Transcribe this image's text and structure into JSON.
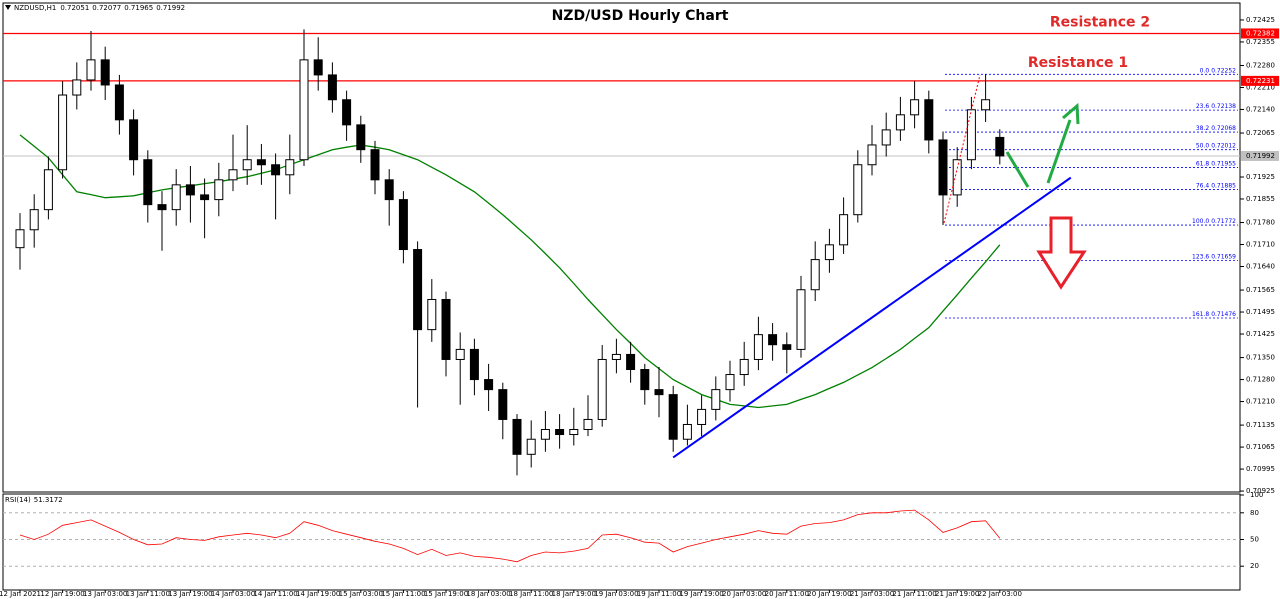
{
  "symbol": "NZDUSD,H1",
  "chart_data": [
    {
      "type": "candlestick",
      "title": "NZD/USD Hourly Chart",
      "categories": [
        "12 Jan 2021",
        null,
        null,
        "12 Jan 19:00",
        null,
        null,
        "13 Jan 03:00",
        null,
        null,
        "13 Jan 11:00",
        null,
        null,
        "13 Jan 19:00",
        null,
        null,
        "14 Jan 03:00",
        null,
        null,
        "14 Jan 11:00",
        null,
        null,
        "14 Jan 19:00",
        null,
        null,
        "15 Jan 03:00",
        null,
        null,
        "15 Jan 11:00",
        null,
        null,
        "15 Jan 19:00",
        null,
        null,
        "18 Jan 03:00",
        null,
        null,
        "18 Jan 11:00",
        null,
        null,
        "18 Jan 19:00",
        null,
        null,
        "19 Jan 03:00",
        null,
        null,
        "19 Jan 11:00",
        null,
        null,
        "19 Jan 19:00",
        null,
        null,
        "20 Jan 03:00",
        null,
        null,
        "20 Jan 11:00",
        null,
        null,
        "20 Jan 19:00",
        null,
        null,
        "21 Jan 03:00",
        null,
        null,
        "21 Jan 11:00",
        null,
        null,
        "21 Jan 19:00",
        null,
        null,
        "22 Jan 03:00"
      ],
      "open": [
        0.717,
        0.71757,
        0.71821,
        0.71948,
        0.72186,
        0.72234,
        0.72298,
        0.72218,
        0.72107,
        0.7198,
        0.71837,
        0.71821,
        0.719,
        0.71868,
        0.71853,
        0.71916,
        0.71948,
        0.7198,
        0.71964,
        0.71932,
        0.7198,
        0.72298,
        0.7225,
        0.72171,
        0.72091,
        0.72012,
        0.71916,
        0.71853,
        0.71694,
        0.71439,
        0.71535,
        0.71344,
        0.71376,
        0.7128,
        0.71248,
        0.71153,
        0.71042,
        0.7109,
        0.71121,
        0.71105,
        0.71121,
        0.71153,
        0.71344,
        0.7136,
        0.71312,
        0.71248,
        0.71232,
        0.7109,
        0.71137,
        0.71185,
        0.71248,
        0.71296,
        0.71344,
        0.71423,
        0.71391,
        0.71376,
        0.71566,
        0.71662,
        0.71709,
        0.71805,
        0.71964,
        0.72027,
        0.72075,
        0.72123,
        0.72171,
        0.72043,
        0.71868,
        0.7198,
        0.72139,
        0.72051
      ],
      "high": [
        0.7181,
        0.7187,
        0.7199,
        0.7223,
        0.7229,
        0.7239,
        0.7234,
        0.7225,
        0.7214,
        0.7201,
        0.7188,
        0.7195,
        0.7196,
        0.7192,
        0.7197,
        0.7206,
        0.7209,
        0.7203,
        0.72,
        0.7206,
        0.72395,
        0.7237,
        0.7229,
        0.722,
        0.7212,
        0.7204,
        0.7195,
        0.7188,
        0.7172,
        0.716,
        0.7156,
        0.7143,
        0.7141,
        0.7133,
        0.7127,
        0.7117,
        0.7115,
        0.7118,
        0.7117,
        0.7119,
        0.7123,
        0.7139,
        0.7141,
        0.714,
        0.7133,
        0.7132,
        0.7126,
        0.712,
        0.7123,
        0.7129,
        0.7134,
        0.714,
        0.7148,
        0.7146,
        0.7143,
        0.7161,
        0.7172,
        0.7176,
        0.7186,
        0.7201,
        0.7209,
        0.7213,
        0.7218,
        0.7223,
        0.722,
        0.7207,
        0.7202,
        0.7218,
        0.72252,
        0.72077
      ],
      "low": [
        0.7163,
        0.717,
        0.7179,
        0.7192,
        0.7214,
        0.722,
        0.7217,
        0.7206,
        0.7193,
        0.7178,
        0.7169,
        0.7177,
        0.7178,
        0.7173,
        0.718,
        0.7188,
        0.719,
        0.719,
        0.7179,
        0.7187,
        0.7196,
        0.722,
        0.7213,
        0.7204,
        0.7197,
        0.7187,
        0.7177,
        0.7165,
        0.71191,
        0.714,
        0.7129,
        0.712,
        0.7123,
        0.7118,
        0.7109,
        0.70975,
        0.71,
        0.7105,
        0.7106,
        0.7107,
        0.711,
        0.7113,
        0.713,
        0.7127,
        0.712,
        0.7116,
        0.7105,
        0.7107,
        0.711,
        0.7115,
        0.7121,
        0.7126,
        0.7131,
        0.7134,
        0.713,
        0.7135,
        0.7153,
        0.7162,
        0.7168,
        0.7178,
        0.7193,
        0.7199,
        0.7204,
        0.7208,
        0.72,
        0.71772,
        0.7183,
        0.7195,
        0.721,
        0.71965
      ],
      "close": [
        0.71757,
        0.71821,
        0.71948,
        0.72186,
        0.72234,
        0.72298,
        0.72218,
        0.72107,
        0.7198,
        0.71837,
        0.71821,
        0.719,
        0.71868,
        0.71853,
        0.71916,
        0.71948,
        0.7198,
        0.71964,
        0.71932,
        0.7198,
        0.72298,
        0.7225,
        0.72171,
        0.72091,
        0.72012,
        0.71916,
        0.71853,
        0.71694,
        0.71439,
        0.71535,
        0.71344,
        0.71376,
        0.7128,
        0.71248,
        0.71153,
        0.71042,
        0.7109,
        0.71121,
        0.71105,
        0.71121,
        0.71153,
        0.71344,
        0.7136,
        0.71312,
        0.71248,
        0.71232,
        0.7109,
        0.71137,
        0.71185,
        0.71248,
        0.71296,
        0.71344,
        0.71423,
        0.71391,
        0.71376,
        0.71566,
        0.71662,
        0.71709,
        0.71805,
        0.71964,
        0.72027,
        0.72075,
        0.72123,
        0.72171,
        0.72043,
        0.71868,
        0.7198,
        0.72139,
        0.72171,
        0.71992
      ],
      "bull_color": "#ffffff",
      "bear_color": "#000000",
      "wick_color": "#000000",
      "moving_average": {
        "color": "#008000",
        "values": [
          0.72059,
          0.72023,
          0.71986,
          0.71932,
          0.71878,
          0.71869,
          0.71859,
          0.71862,
          0.71865,
          0.71875,
          0.71884,
          0.71891,
          0.71897,
          0.71904,
          0.7191,
          0.71918,
          0.71926,
          0.71937,
          0.71948,
          0.71964,
          0.7198,
          0.71996,
          0.72012,
          0.7202,
          0.72027,
          0.7202,
          0.72012,
          0.71996,
          0.7198,
          0.71956,
          0.71932,
          0.71905,
          0.71878,
          0.71842,
          0.71805,
          0.71765,
          0.71725,
          0.71681,
          0.71636,
          0.71586,
          0.71535,
          0.71487,
          0.71439,
          0.71395,
          0.7135,
          0.71315,
          0.7128,
          0.71256,
          0.71232,
          0.71217,
          0.71201,
          0.71196,
          0.71191,
          0.71196,
          0.71201,
          0.71217,
          0.71232,
          0.71252,
          0.71271,
          0.71295,
          0.71318,
          0.71347,
          0.71376,
          0.71411,
          0.71445,
          0.71498,
          0.7155,
          0.71603,
          0.71655,
          0.71709
        ]
      },
      "ylim": [
        0.70922,
        0.72479
      ],
      "yticks": [
        0.72425,
        0.72355,
        {
          "value": 0.7228,
          "label": "0.72280"
        },
        {
          "value": 0.7221,
          "label": "0.72210"
        },
        {
          "value": 0.7214,
          "label": "0.72140"
        },
        0.72065,
        0.71925,
        0.71855,
        {
          "value": 0.7178,
          "label": "0.71780"
        },
        {
          "value": 0.7171,
          "label": "0.71710"
        },
        {
          "value": 0.7164,
          "label": "0.71640"
        },
        0.71565,
        0.71495,
        0.71425,
        {
          "value": 0.7135,
          "label": "0.71350"
        },
        {
          "value": 0.7128,
          "label": "0.71280"
        },
        {
          "value": 0.7121,
          "label": "0.71210"
        },
        0.71135,
        0.71065,
        0.70995,
        0.70925
      ],
      "grid": false,
      "price_lines": [
        {
          "label": "Resistance 2",
          "value": 0.72382,
          "color": "#ff0000"
        },
        {
          "label": "Resistance 1",
          "value": 0.72231,
          "color": "#ff0000"
        }
      ],
      "fibonacci": {
        "color": "#0000ff",
        "levels": [
          {
            "ratio": "0.0",
            "price": 0.72252
          },
          {
            "ratio": "23.6",
            "price": 0.72138
          },
          {
            "ratio": "38.2",
            "price": 0.72068
          },
          {
            "ratio": "50.0",
            "price": 0.72012
          },
          {
            "ratio": "61.8",
            "price": 0.71955
          },
          {
            "ratio": "76.4",
            "price": 0.71885
          },
          {
            "ratio": "100.0",
            "price": 0.71772
          },
          {
            "ratio": "123.6",
            "price": 0.71659
          },
          {
            "ratio": "161.8",
            "price": 0.71476
          }
        ]
      },
      "trendline": {
        "color": "#0000ff",
        "x": [
          46,
          74
        ],
        "y": [
          0.71032,
          0.71923
        ]
      }
    },
    {
      "type": "line",
      "title": "RSI(14)",
      "color": "#ff0000",
      "values": [
        55,
        50,
        56,
        66,
        69,
        72,
        65,
        58,
        50,
        44,
        45,
        52,
        50,
        49,
        53,
        55,
        57,
        55,
        52,
        57,
        70,
        66,
        60,
        56,
        52,
        48,
        45,
        40,
        33,
        39,
        32,
        35,
        31,
        30,
        28,
        25,
        32,
        36,
        35,
        37,
        40,
        55,
        56,
        52,
        47,
        46,
        36,
        42,
        46,
        50,
        53,
        56,
        60,
        57,
        56,
        65,
        68,
        69,
        72,
        78,
        80,
        80,
        82,
        83,
        72,
        58,
        63,
        70,
        71,
        51.3172
      ],
      "ylim": [
        0,
        100
      ],
      "yticks": [
        20,
        50,
        80,
        100
      ],
      "grid": true
    }
  ]
}
